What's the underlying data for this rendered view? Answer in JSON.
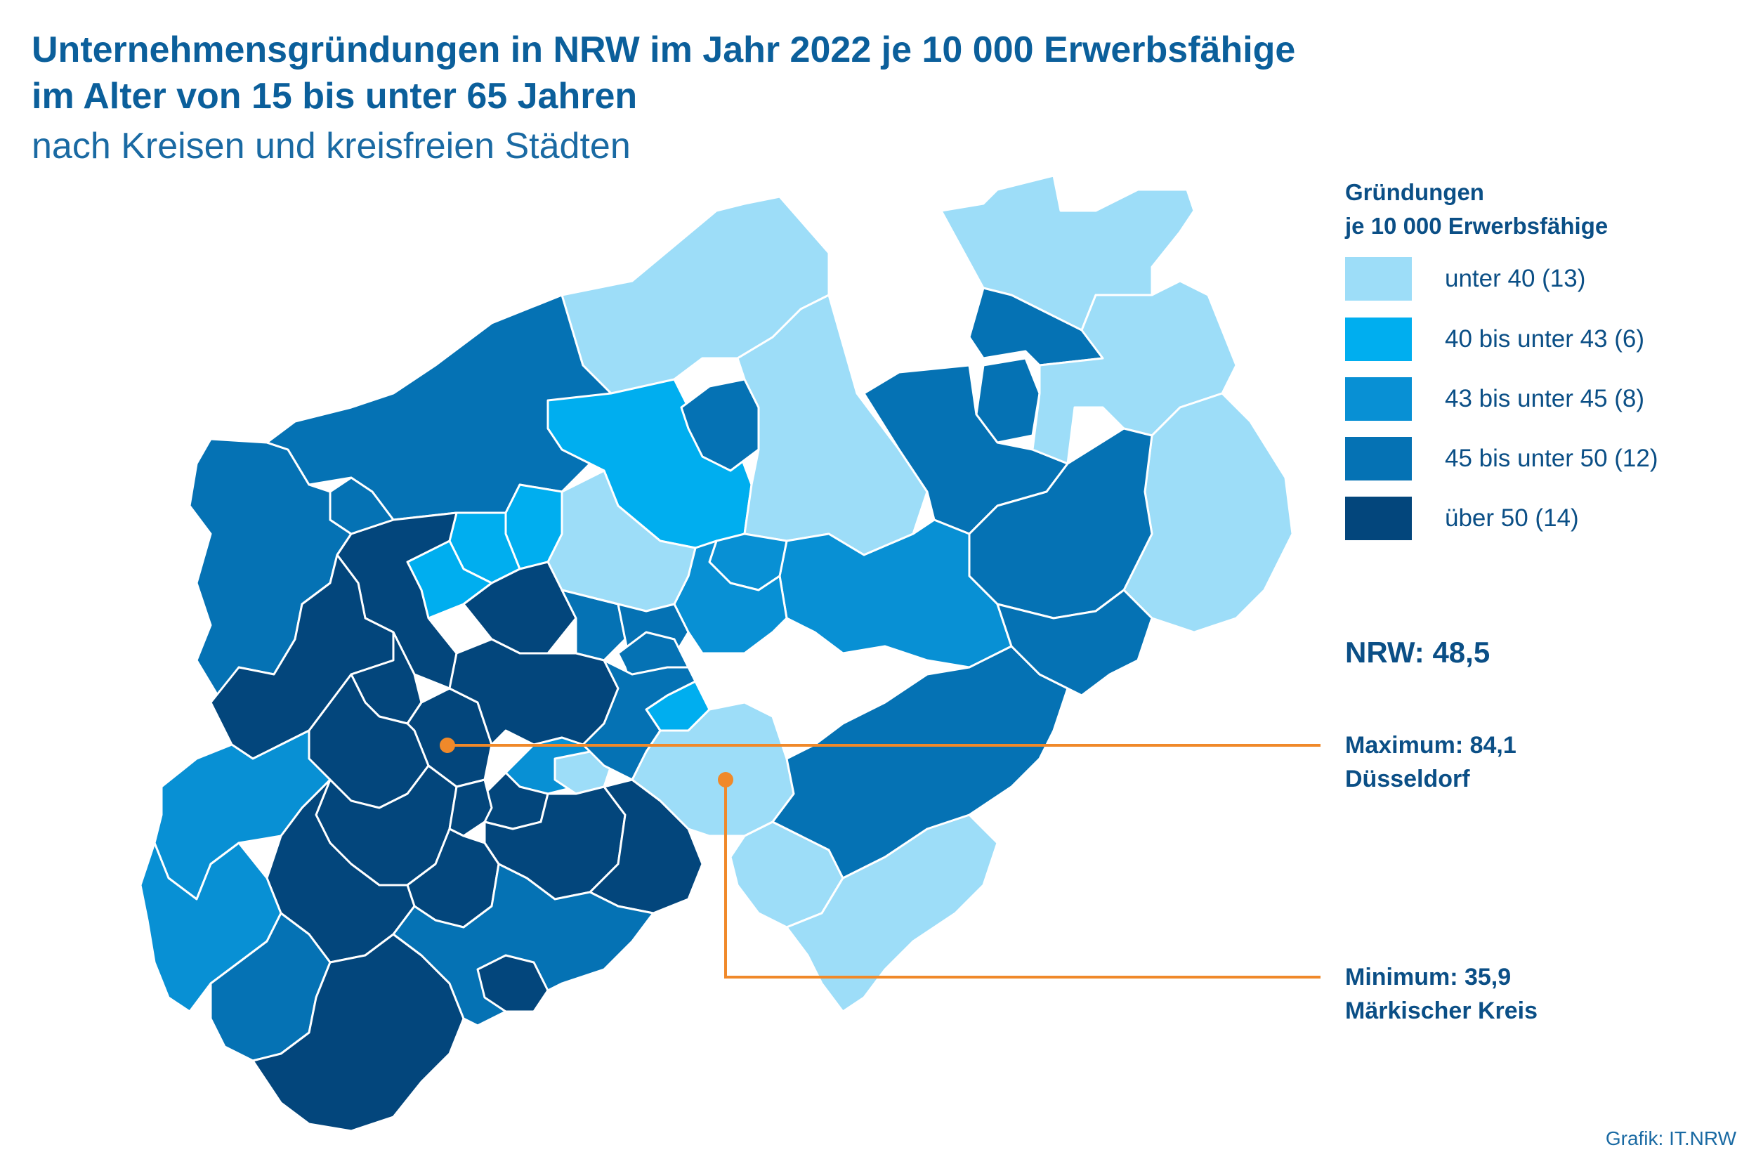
{
  "title_line1": "Unternehmensgründungen in NRW im Jahr 2022 je 10 000 Erwerbsfähige",
  "title_line2": "im Alter von 15 bis unter 65 Jahren",
  "subtitle": "nach Kreisen und kreisfreien Städten",
  "legend": {
    "title_line1": "Gründungen",
    "title_line2": "je 10 000 Erwerbsfähige",
    "classes": [
      {
        "label": "unter 40 (13)",
        "color": "#9dddf8"
      },
      {
        "label": "40 bis unter 43 (6)",
        "color": "#00aeef"
      },
      {
        "label": "43 bis unter 45 (8)",
        "color": "#0890d4"
      },
      {
        "label": "45 bis unter 50 (12)",
        "color": "#0572b4"
      },
      {
        "label": "über 50 (14)",
        "color": "#03467c"
      }
    ]
  },
  "nrw_total": "NRW: 48,5",
  "maximum": {
    "line1": "Maximum: 84,1",
    "line2": "Düsseldorf"
  },
  "minimum": {
    "line1": "Minimum: 35,9",
    "line2": "Märkischer Kreis"
  },
  "callout_color": "#f0892a",
  "credit": "Grafik: IT.NRW"
}
